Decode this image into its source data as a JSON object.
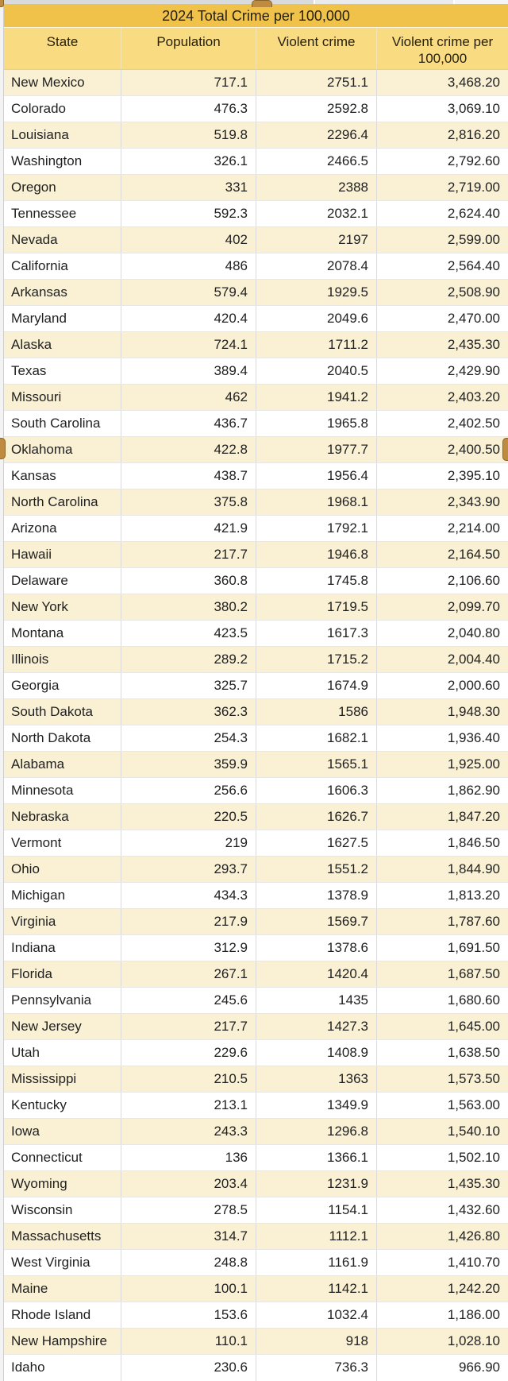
{
  "sheet": {
    "title": "2024 Total Crime per 100,000",
    "columns": [
      "State",
      "Population",
      "Violent crime",
      "Violent crime per 100,000"
    ]
  },
  "colors": {
    "title_bg": "#F0C24A",
    "header_bg": "#F9DB82",
    "band_bg": "#FAF0D3",
    "selection_handle": "#BF8B41"
  },
  "chart_data": {
    "type": "table",
    "title": "2024 Total Crime per 100,000",
    "columns": [
      "State",
      "Population",
      "Violent crime",
      "Violent crime per 100,000"
    ],
    "rows": [
      {
        "state": "New Mexico",
        "population": "717.1",
        "violent_crime": "2751.1",
        "per_100k": "3,468.20"
      },
      {
        "state": "Colorado",
        "population": "476.3",
        "violent_crime": "2592.8",
        "per_100k": "3,069.10"
      },
      {
        "state": "Louisiana",
        "population": "519.8",
        "violent_crime": "2296.4",
        "per_100k": "2,816.20"
      },
      {
        "state": "Washington",
        "population": "326.1",
        "violent_crime": "2466.5",
        "per_100k": "2,792.60"
      },
      {
        "state": "Oregon",
        "population": "331",
        "violent_crime": "2388",
        "per_100k": "2,719.00"
      },
      {
        "state": "Tennessee",
        "population": "592.3",
        "violent_crime": "2032.1",
        "per_100k": "2,624.40"
      },
      {
        "state": "Nevada",
        "population": "402",
        "violent_crime": "2197",
        "per_100k": "2,599.00"
      },
      {
        "state": "California",
        "population": "486",
        "violent_crime": "2078.4",
        "per_100k": "2,564.40"
      },
      {
        "state": "Arkansas",
        "population": "579.4",
        "violent_crime": "1929.5",
        "per_100k": "2,508.90"
      },
      {
        "state": "Maryland",
        "population": "420.4",
        "violent_crime": "2049.6",
        "per_100k": "2,470.00"
      },
      {
        "state": "Alaska",
        "population": "724.1",
        "violent_crime": "1711.2",
        "per_100k": "2,435.30"
      },
      {
        "state": "Texas",
        "population": "389.4",
        "violent_crime": "2040.5",
        "per_100k": "2,429.90"
      },
      {
        "state": "Missouri",
        "population": "462",
        "violent_crime": "1941.2",
        "per_100k": "2,403.20"
      },
      {
        "state": "South Carolina",
        "population": "436.7",
        "violent_crime": "1965.8",
        "per_100k": "2,402.50"
      },
      {
        "state": "Oklahoma",
        "population": "422.8",
        "violent_crime": "1977.7",
        "per_100k": "2,400.50"
      },
      {
        "state": "Kansas",
        "population": "438.7",
        "violent_crime": "1956.4",
        "per_100k": "2,395.10"
      },
      {
        "state": "North Carolina",
        "population": "375.8",
        "violent_crime": "1968.1",
        "per_100k": "2,343.90"
      },
      {
        "state": "Arizona",
        "population": "421.9",
        "violent_crime": "1792.1",
        "per_100k": "2,214.00"
      },
      {
        "state": "Hawaii",
        "population": "217.7",
        "violent_crime": "1946.8",
        "per_100k": "2,164.50"
      },
      {
        "state": "Delaware",
        "population": "360.8",
        "violent_crime": "1745.8",
        "per_100k": "2,106.60"
      },
      {
        "state": "New York",
        "population": "380.2",
        "violent_crime": "1719.5",
        "per_100k": "2,099.70"
      },
      {
        "state": "Montana",
        "population": "423.5",
        "violent_crime": "1617.3",
        "per_100k": "2,040.80"
      },
      {
        "state": "Illinois",
        "population": "289.2",
        "violent_crime": "1715.2",
        "per_100k": "2,004.40"
      },
      {
        "state": "Georgia",
        "population": "325.7",
        "violent_crime": "1674.9",
        "per_100k": "2,000.60"
      },
      {
        "state": "South Dakota",
        "population": "362.3",
        "violent_crime": "1586",
        "per_100k": "1,948.30"
      },
      {
        "state": "North Dakota",
        "population": "254.3",
        "violent_crime": "1682.1",
        "per_100k": "1,936.40"
      },
      {
        "state": "Alabama",
        "population": "359.9",
        "violent_crime": "1565.1",
        "per_100k": "1,925.00"
      },
      {
        "state": "Minnesota",
        "population": "256.6",
        "violent_crime": "1606.3",
        "per_100k": "1,862.90"
      },
      {
        "state": "Nebraska",
        "population": "220.5",
        "violent_crime": "1626.7",
        "per_100k": "1,847.20"
      },
      {
        "state": "Vermont",
        "population": "219",
        "violent_crime": "1627.5",
        "per_100k": "1,846.50"
      },
      {
        "state": "Ohio",
        "population": "293.7",
        "violent_crime": "1551.2",
        "per_100k": "1,844.90"
      },
      {
        "state": "Michigan",
        "population": "434.3",
        "violent_crime": "1378.9",
        "per_100k": "1,813.20"
      },
      {
        "state": "Virginia",
        "population": "217.9",
        "violent_crime": "1569.7",
        "per_100k": "1,787.60"
      },
      {
        "state": "Indiana",
        "population": "312.9",
        "violent_crime": "1378.6",
        "per_100k": "1,691.50"
      },
      {
        "state": "Florida",
        "population": "267.1",
        "violent_crime": "1420.4",
        "per_100k": "1,687.50"
      },
      {
        "state": "Pennsylvania",
        "population": "245.6",
        "violent_crime": "1435",
        "per_100k": "1,680.60"
      },
      {
        "state": "New Jersey",
        "population": "217.7",
        "violent_crime": "1427.3",
        "per_100k": "1,645.00"
      },
      {
        "state": "Utah",
        "population": "229.6",
        "violent_crime": "1408.9",
        "per_100k": "1,638.50"
      },
      {
        "state": "Mississippi",
        "population": "210.5",
        "violent_crime": "1363",
        "per_100k": "1,573.50"
      },
      {
        "state": "Kentucky",
        "population": "213.1",
        "violent_crime": "1349.9",
        "per_100k": "1,563.00"
      },
      {
        "state": "Iowa",
        "population": "243.3",
        "violent_crime": "1296.8",
        "per_100k": "1,540.10"
      },
      {
        "state": "Connecticut",
        "population": "136",
        "violent_crime": "1366.1",
        "per_100k": "1,502.10"
      },
      {
        "state": "Wyoming",
        "population": "203.4",
        "violent_crime": "1231.9",
        "per_100k": "1,435.30"
      },
      {
        "state": "Wisconsin",
        "population": "278.5",
        "violent_crime": "1154.1",
        "per_100k": "1,432.60"
      },
      {
        "state": "Massachusetts",
        "population": "314.7",
        "violent_crime": "1112.1",
        "per_100k": "1,426.80"
      },
      {
        "state": "West Virginia",
        "population": "248.8",
        "violent_crime": "1161.9",
        "per_100k": "1,410.70"
      },
      {
        "state": "Maine",
        "population": "100.1",
        "violent_crime": "1142.1",
        "per_100k": "1,242.20"
      },
      {
        "state": "Rhode Island",
        "population": "153.6",
        "violent_crime": "1032.4",
        "per_100k": "1,186.00"
      },
      {
        "state": "New Hampshire",
        "population": "110.1",
        "violent_crime": "918",
        "per_100k": "1,028.10"
      },
      {
        "state": "Idaho",
        "population": "230.6",
        "violent_crime": "736.3",
        "per_100k": "966.90"
      }
    ]
  }
}
